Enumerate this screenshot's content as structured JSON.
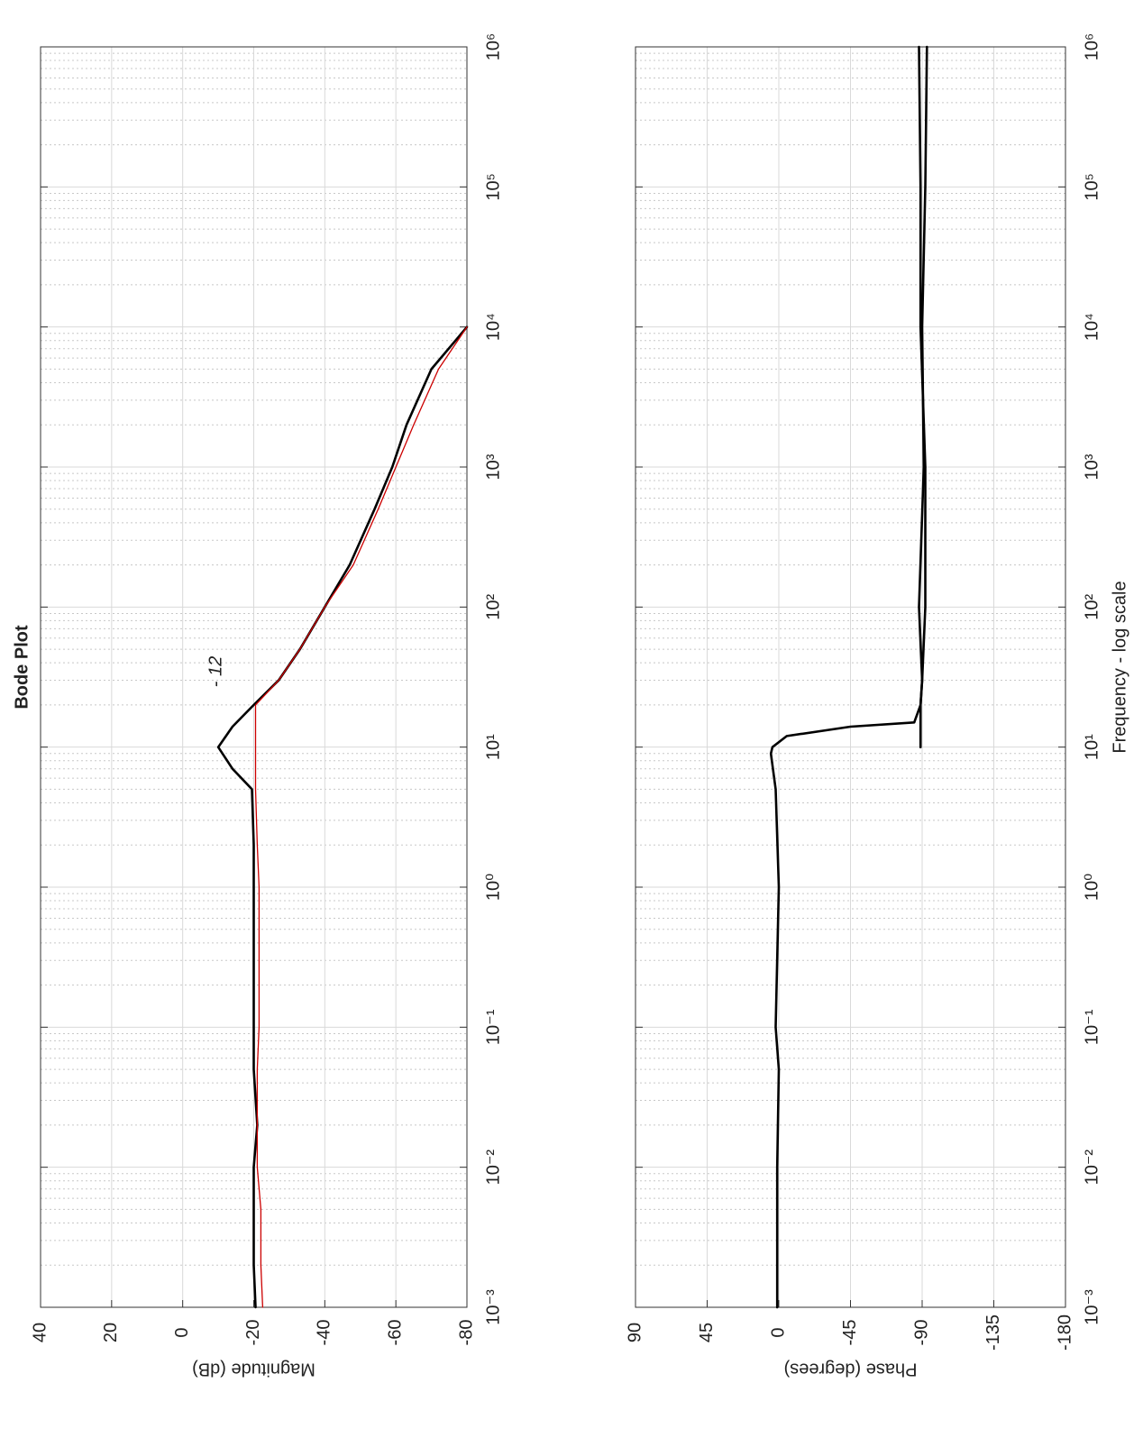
{
  "chart_data": [
    {
      "type": "line",
      "title": "Bode Plot",
      "ylabel": "Magnitude (dB)",
      "x": [
        0.001,
        0.002,
        0.005,
        0.01,
        0.02,
        0.05,
        0.1,
        0.2,
        0.5,
        1,
        2,
        5,
        7,
        10,
        14,
        20,
        30,
        50,
        100,
        200,
        500,
        1000,
        2000,
        5000,
        10000
      ],
      "series": [
        {
          "color": "#000000",
          "values": [
            -20.5,
            -20,
            -20,
            -20,
            -21,
            -20,
            -20,
            -20,
            -20,
            -20,
            -20,
            -19.5,
            -14,
            -10,
            -14,
            -20,
            -27,
            -33,
            -40,
            -47,
            -54,
            -59,
            -63,
            -70,
            -80
          ]
        },
        {
          "color": "#cc0000",
          "values": [
            -22.5,
            -22,
            -22,
            -21,
            -21,
            -21,
            -21.5,
            -21.5,
            -21.5,
            -21.5,
            -21,
            -20.5,
            -20.5,
            -20.5,
            -20.5,
            -20.5,
            -27,
            -33,
            -40,
            -48,
            -55,
            -60,
            -65,
            -72,
            -80
          ]
        }
      ],
      "annotations": [
        "- 12"
      ],
      "annotation_color": "#1a73e8",
      "log_x": true,
      "grid": true,
      "minor_grid": true,
      "xlim": [
        0.001,
        1000000
      ],
      "xticks": [
        {
          "value": 0.001,
          "label": "10⁻³"
        },
        {
          "value": 0.01,
          "label": "10⁻²"
        },
        {
          "value": 0.1,
          "label": "10⁻¹"
        },
        {
          "value": 1,
          "label": "10⁰"
        },
        {
          "value": 10,
          "label": "10¹"
        },
        {
          "value": 100,
          "label": "10²"
        },
        {
          "value": 1000,
          "label": "10³"
        },
        {
          "value": 10000,
          "label": "10⁴"
        },
        {
          "value": 100000,
          "label": "10⁵"
        },
        {
          "value": 1000000,
          "label": "10⁶"
        }
      ],
      "ylim": [
        -80,
        40
      ],
      "yticks": [
        40,
        20,
        0,
        -20,
        -40,
        -60,
        -80
      ]
    },
    {
      "type": "line",
      "xlabel": "Frequency - log scale",
      "ylabel": "Phase (degrees)",
      "x": [
        0.001,
        0.01,
        0.05,
        0.1,
        1,
        5,
        9,
        10,
        12,
        14,
        15,
        20,
        30,
        100,
        1000,
        10000,
        100000,
        1000000
      ],
      "series": [
        {
          "color": "#000000",
          "values": [
            1,
            1,
            0,
            2,
            0,
            2,
            5,
            4,
            -5,
            -45,
            -85,
            -89,
            -90,
            -88,
            -91,
            -90,
            -92,
            -93
          ]
        },
        {
          "color": "#000000",
          "values": [
            null,
            null,
            null,
            null,
            null,
            null,
            null,
            -89,
            -89,
            -89,
            -89,
            -89,
            -90,
            -92,
            -92,
            -89,
            -89,
            -88
          ]
        }
      ],
      "log_x": true,
      "grid": true,
      "minor_grid": true,
      "xlim": [
        0.001,
        1000000
      ],
      "xticks": [
        {
          "value": 0.001,
          "label": "10⁻³"
        },
        {
          "value": 0.01,
          "label": "10⁻²"
        },
        {
          "value": 0.1,
          "label": "10⁻¹"
        },
        {
          "value": 1,
          "label": "10⁰"
        },
        {
          "value": 10,
          "label": "10¹"
        },
        {
          "value": 100,
          "label": "10²"
        },
        {
          "value": 1000,
          "label": "10³"
        },
        {
          "value": 10000,
          "label": "10⁴"
        },
        {
          "value": 100000,
          "label": "10⁵"
        },
        {
          "value": 1000000,
          "label": "10⁶"
        }
      ],
      "ylim": [
        -180,
        90
      ],
      "yticks": [
        90,
        45,
        0,
        -45,
        -90,
        -135,
        -180
      ]
    }
  ]
}
